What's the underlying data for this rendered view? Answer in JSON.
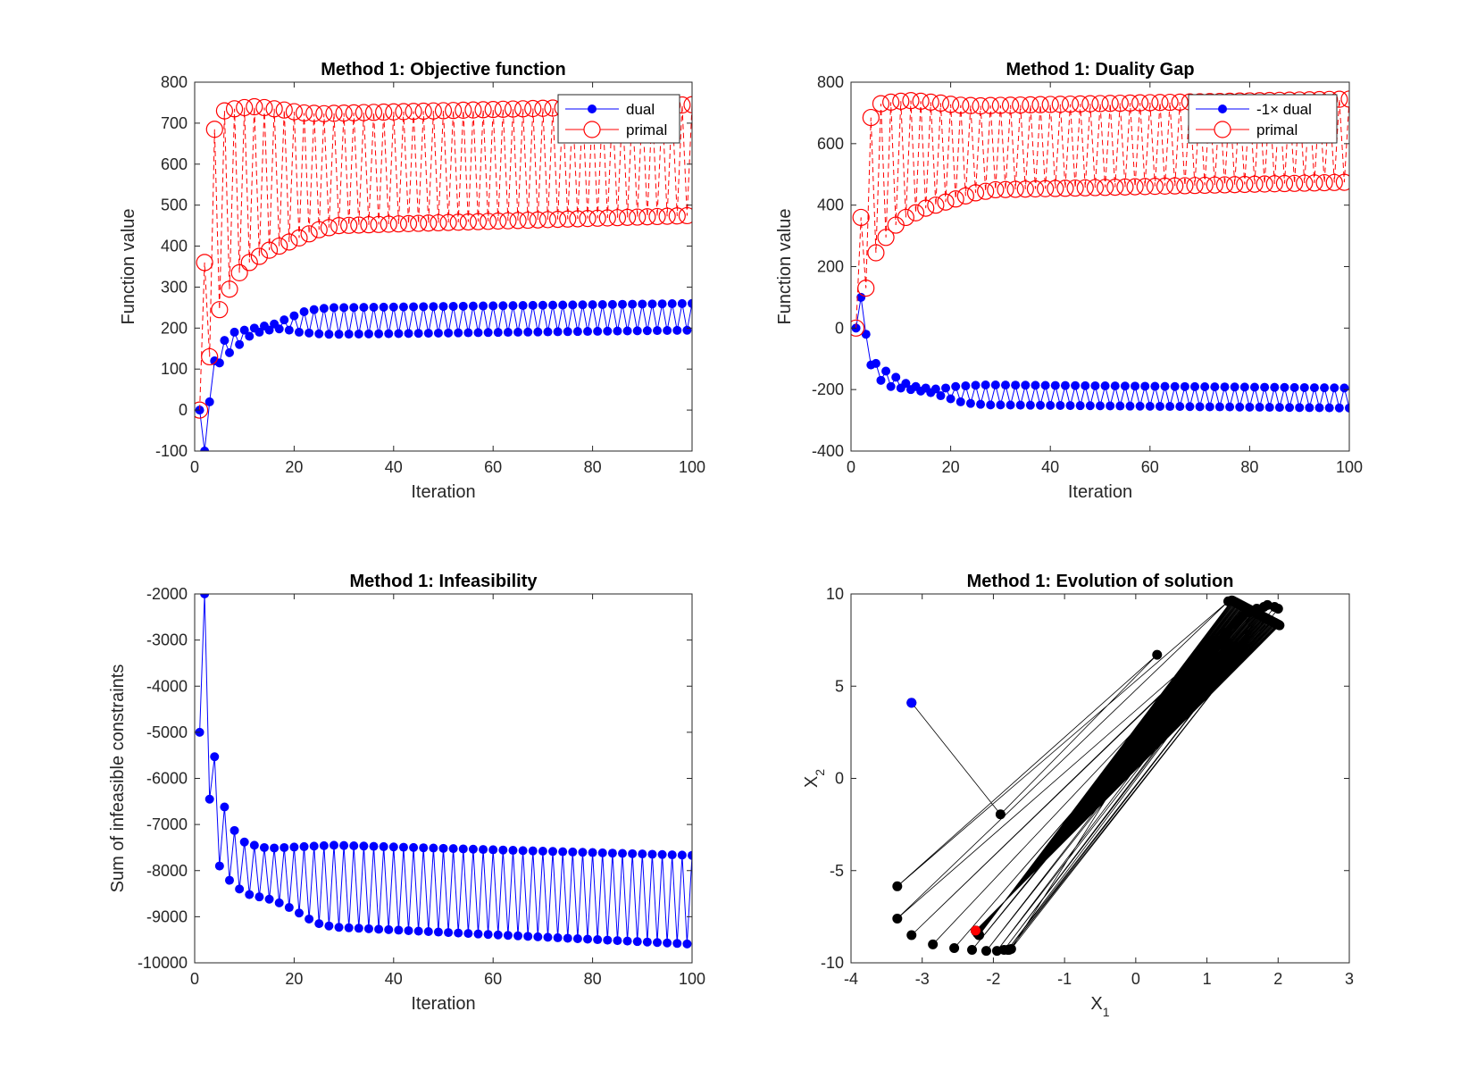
{
  "chart_data": [
    {
      "type": "line",
      "title": "Method 1: Objective function",
      "xlabel": "Iteration",
      "ylabel": "Function value",
      "xlim": [
        0,
        100
      ],
      "ylim": [
        -100,
        800
      ],
      "xticks": [
        0,
        20,
        40,
        60,
        80,
        100
      ],
      "yticks": [
        -100,
        0,
        100,
        200,
        300,
        400,
        500,
        600,
        700,
        800
      ],
      "legend_position": "top-right",
      "grid": false,
      "series": [
        {
          "name": "dual",
          "color": "#0000ff",
          "marker": "filled-circle",
          "alternating": true,
          "start": [
            0,
            -100,
            20,
            120,
            115
          ],
          "even_start": [
            170,
            190,
            195,
            200,
            205,
            210,
            220,
            230,
            240,
            245,
            248,
            250,
            250
          ],
          "even_end": 260,
          "odd_start": [
            140,
            160,
            180,
            190,
            195,
            198,
            195,
            190,
            188,
            186,
            185,
            185
          ],
          "odd_end": 195
        },
        {
          "name": "primal",
          "color": "#ff0000",
          "marker": "open-circle",
          "alternating": true,
          "start": [
            0,
            360,
            130,
            685,
            245
          ],
          "even_start": [
            730,
            735,
            738,
            740,
            738,
            735,
            732,
            728,
            725,
            724,
            723,
            724
          ],
          "even_end": 745,
          "odd_start": [
            295,
            335,
            360,
            375,
            390,
            400,
            410,
            420,
            430,
            440,
            445,
            450
          ],
          "odd_end": 475
        }
      ]
    },
    {
      "type": "line",
      "title": "Method 1: Duality Gap",
      "xlabel": "Iteration",
      "ylabel": "Function value",
      "xlim": [
        0,
        100
      ],
      "ylim": [
        -400,
        800
      ],
      "xticks": [
        0,
        20,
        40,
        60,
        80,
        100
      ],
      "yticks": [
        -400,
        -200,
        0,
        200,
        400,
        600,
        800
      ],
      "legend_position": "top-right",
      "grid": false,
      "series": [
        {
          "name": "-1× dual",
          "color": "#0000ff",
          "marker": "filled-circle",
          "alternating": true,
          "start": [
            0,
            100,
            -20,
            -120,
            -115
          ],
          "even_start": [
            -170,
            -190,
            -195,
            -200,
            -205,
            -210,
            -220,
            -230,
            -240,
            -245,
            -248,
            -250,
            -250
          ],
          "even_end": -260,
          "odd_start": [
            -140,
            -160,
            -180,
            -190,
            -195,
            -198,
            -195,
            -190,
            -188,
            -186,
            -185,
            -185
          ],
          "odd_end": -195
        },
        {
          "name": "primal",
          "color": "#ff0000",
          "marker": "open-circle",
          "alternating": true,
          "start": [
            0,
            360,
            130,
            685,
            245
          ],
          "even_start": [
            730,
            735,
            738,
            740,
            738,
            735,
            732,
            728,
            725,
            724,
            723,
            724
          ],
          "even_end": 745,
          "odd_start": [
            295,
            335,
            360,
            375,
            390,
            400,
            410,
            420,
            430,
            440,
            445,
            450
          ],
          "odd_end": 475
        }
      ]
    },
    {
      "type": "line",
      "title": "Method 1: Infeasibility",
      "xlabel": "Iteration",
      "ylabel": "Sum of infeasible constraints",
      "xlim": [
        0,
        100
      ],
      "ylim": [
        -10000,
        -2000
      ],
      "xticks": [
        0,
        20,
        40,
        60,
        80,
        100
      ],
      "yticks": [
        -10000,
        -9000,
        -8000,
        -7000,
        -6000,
        -5000,
        -4000,
        -3000,
        -2000
      ],
      "grid": false,
      "series": [
        {
          "color": "#0000ff",
          "marker": "filled-circle",
          "alternating": true,
          "start": [
            -5000,
            -2000,
            -6450,
            -5530,
            -7900
          ],
          "even_start": [
            -6620,
            -7130,
            -7380,
            -7450,
            -7500,
            -7510,
            -7500,
            -7490,
            -7480,
            -7470,
            -7460,
            -7450
          ],
          "even_end": -7670,
          "odd_start": [
            -8210,
            -8400,
            -8520,
            -8570,
            -8620,
            -8700,
            -8800,
            -8920,
            -9050,
            -9150,
            -9200,
            -9230
          ],
          "odd_end": -9600
        }
      ]
    },
    {
      "type": "scatter",
      "title": "Method 1: Evolution of solution",
      "xlabel": "X",
      "xlabel_sub": "1",
      "ylabel": "X",
      "ylabel_sub": "2",
      "xlim": [
        -4,
        3
      ],
      "ylim": [
        -10,
        10
      ],
      "xticks": [
        -4,
        -3,
        -2,
        -1,
        0,
        1,
        2,
        3
      ],
      "yticks": [
        -10,
        -5,
        0,
        5,
        10
      ],
      "grid": false,
      "line_color": "#000000",
      "start_color": "#0000ff",
      "end_color": "#ff0000",
      "path": [
        [
          -3.15,
          4.1
        ],
        [
          -1.9,
          -1.95
        ],
        [
          0.3,
          6.7
        ],
        [
          -3.35,
          -5.85
        ],
        [
          1.3,
          9.6
        ],
        [
          -3.35,
          -7.6
        ],
        [
          1.25,
          7.9
        ],
        [
          -3.15,
          -8.5
        ],
        [
          1.4,
          8.4
        ],
        [
          -2.85,
          -9.0
        ],
        [
          1.45,
          8.6
        ],
        [
          -2.55,
          -9.2
        ],
        [
          1.5,
          8.8
        ],
        [
          -2.3,
          -9.3
        ],
        [
          1.6,
          9.0
        ],
        [
          -2.1,
          -9.35
        ],
        [
          1.7,
          9.2
        ],
        [
          -1.95,
          -9.35
        ],
        [
          1.8,
          9.3
        ],
        [
          -1.85,
          -9.3
        ],
        [
          1.85,
          9.4
        ],
        [
          -1.8,
          -9.3
        ],
        [
          1.95,
          9.3
        ],
        [
          -1.78,
          -9.3
        ],
        [
          2.0,
          9.2
        ],
        [
          -1.75,
          -9.25
        ]
      ],
      "osc_start": [
        1.35,
        9.65,
        -2.2,
        -8.5
      ],
      "osc_end": [
        2.02,
        8.3,
        -2.25,
        -8.25
      ],
      "osc_count": 70
    }
  ]
}
